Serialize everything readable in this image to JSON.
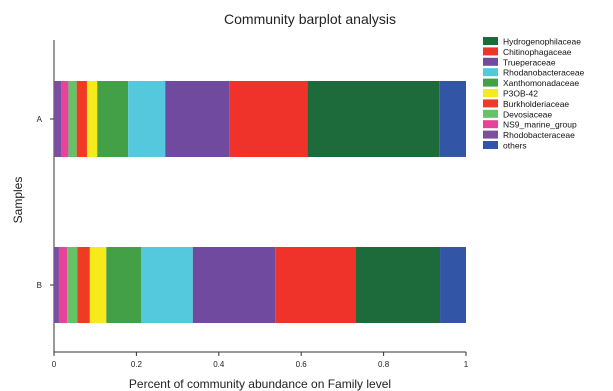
{
  "chart_data": {
    "type": "bar",
    "orientation": "horizontal",
    "stacked": true,
    "title": "Community barplot analysis",
    "xlabel": "Percent of community abundance on Family level",
    "ylabel": "Samples",
    "xlim": [
      0,
      1
    ],
    "x_ticks": [
      "0",
      "0.2",
      "0.4",
      "0.6",
      "0.8",
      "1"
    ],
    "x_tick_values": [
      0,
      0.2,
      0.4,
      0.6,
      0.8,
      1
    ],
    "categories": [
      "A",
      "B"
    ],
    "legend_position": "right",
    "grid": false,
    "series": [
      {
        "name": "Rhodobacteraceae",
        "color": "#7b4f9e",
        "values": [
          0.018,
          0.012
        ]
      },
      {
        "name": "NS9_marine_group",
        "color": "#e8439a",
        "values": [
          0.017,
          0.02
        ]
      },
      {
        "name": "Devosiaceae",
        "color": "#66c266",
        "values": [
          0.02,
          0.025
        ]
      },
      {
        "name": "Burkholderiaceae",
        "color": "#f03a26",
        "values": [
          0.025,
          0.03
        ]
      },
      {
        "name": "P3OB-42",
        "color": "#f7ea1a",
        "values": [
          0.025,
          0.04
        ]
      },
      {
        "name": "Xanthomonadaceae",
        "color": "#43a047",
        "values": [
          0.075,
          0.085
        ]
      },
      {
        "name": "Rhodanobacteraceae",
        "color": "#54c8dc",
        "values": [
          0.09,
          0.125
        ]
      },
      {
        "name": "Trueperaceae",
        "color": "#6f4a9e",
        "values": [
          0.155,
          0.2
        ]
      },
      {
        "name": "Chitinophagaceae",
        "color": "#f0332a",
        "values": [
          0.19,
          0.195
        ]
      },
      {
        "name": "Hydrogenophilaceae",
        "color": "#1d6a3a",
        "values": [
          0.32,
          0.205
        ]
      },
      {
        "name": "others",
        "color": "#3355a5",
        "values": [
          0.065,
          0.063
        ]
      }
    ],
    "legend_order": [
      "Hydrogenophilaceae",
      "Chitinophagaceae",
      "Trueperaceae",
      "Rhodanobacteraceae",
      "Xanthomonadaceae",
      "P3OB-42",
      "Burkholderiaceae",
      "Devosiaceae",
      "NS9_marine_group",
      "Rhodobacteraceae",
      "others"
    ]
  }
}
